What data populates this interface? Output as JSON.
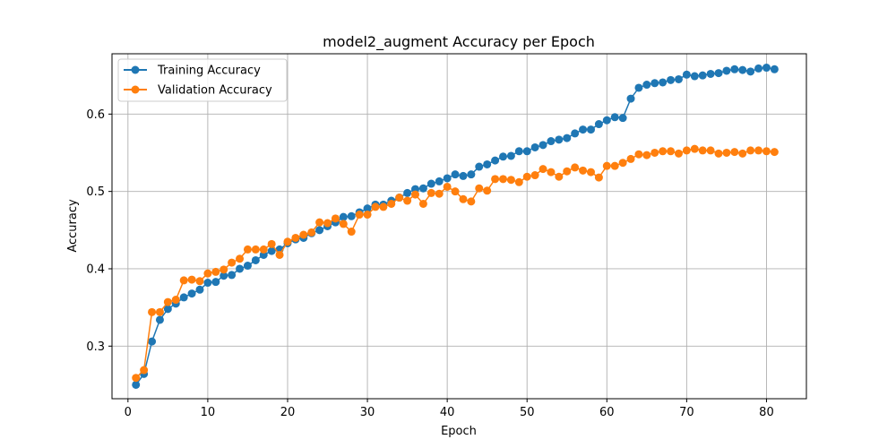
{
  "chart_data": {
    "type": "line",
    "title": "model2_augment Accuracy per Epoch",
    "xlabel": "Epoch",
    "ylabel": "Accuracy",
    "xlim": [
      -2,
      85
    ],
    "ylim": [
      0.232,
      0.678
    ],
    "xticks": [
      0,
      10,
      20,
      30,
      40,
      50,
      60,
      70,
      80
    ],
    "yticks": [
      0.3,
      0.4,
      0.5,
      0.6
    ],
    "grid": true,
    "legend_position": "top-left",
    "x": [
      1,
      2,
      3,
      4,
      5,
      6,
      7,
      8,
      9,
      10,
      11,
      12,
      13,
      14,
      15,
      16,
      17,
      18,
      19,
      20,
      21,
      22,
      23,
      24,
      25,
      26,
      27,
      28,
      29,
      30,
      31,
      32,
      33,
      34,
      35,
      36,
      37,
      38,
      39,
      40,
      41,
      42,
      43,
      44,
      45,
      46,
      47,
      48,
      49,
      50,
      51,
      52,
      53,
      54,
      55,
      56,
      57,
      58,
      59,
      60,
      61,
      62,
      63,
      64,
      65,
      66,
      67,
      68,
      69,
      70,
      71,
      72,
      73,
      74,
      75,
      76,
      77,
      78,
      79,
      80,
      81
    ],
    "series": [
      {
        "name": "Training Accuracy",
        "color": "#1f77b4",
        "values": [
          0.25,
          0.264,
          0.306,
          0.334,
          0.348,
          0.355,
          0.363,
          0.368,
          0.373,
          0.382,
          0.383,
          0.391,
          0.392,
          0.4,
          0.404,
          0.411,
          0.418,
          0.423,
          0.425,
          0.433,
          0.438,
          0.44,
          0.446,
          0.45,
          0.455,
          0.46,
          0.467,
          0.468,
          0.473,
          0.478,
          0.483,
          0.483,
          0.488,
          0.492,
          0.498,
          0.503,
          0.504,
          0.51,
          0.513,
          0.517,
          0.522,
          0.52,
          0.522,
          0.532,
          0.535,
          0.54,
          0.545,
          0.546,
          0.552,
          0.552,
          0.557,
          0.56,
          0.565,
          0.567,
          0.569,
          0.575,
          0.58,
          0.58,
          0.587,
          0.592,
          0.596,
          0.595,
          0.62,
          0.634,
          0.638,
          0.64,
          0.641,
          0.644,
          0.645,
          0.651,
          0.649,
          0.65,
          0.652,
          0.653,
          0.656,
          0.658,
          0.657,
          0.655,
          0.659,
          0.66,
          0.658
        ]
      },
      {
        "name": "Validation Accuracy",
        "color": "#ff7f0e",
        "values": [
          0.259,
          0.269,
          0.344,
          0.344,
          0.357,
          0.36,
          0.385,
          0.386,
          0.384,
          0.394,
          0.396,
          0.399,
          0.408,
          0.413,
          0.425,
          0.425,
          0.425,
          0.432,
          0.418,
          0.435,
          0.44,
          0.444,
          0.447,
          0.46,
          0.459,
          0.465,
          0.458,
          0.448,
          0.47,
          0.47,
          0.48,
          0.48,
          0.484,
          0.492,
          0.488,
          0.496,
          0.484,
          0.498,
          0.497,
          0.506,
          0.5,
          0.49,
          0.487,
          0.504,
          0.501,
          0.516,
          0.516,
          0.515,
          0.512,
          0.519,
          0.521,
          0.529,
          0.525,
          0.519,
          0.526,
          0.531,
          0.527,
          0.525,
          0.518,
          0.533,
          0.533,
          0.537,
          0.542,
          0.548,
          0.547,
          0.55,
          0.552,
          0.552,
          0.549,
          0.553,
          0.555,
          0.553,
          0.553,
          0.549,
          0.55,
          0.551,
          0.549,
          0.553,
          0.553,
          0.552,
          0.551
        ]
      }
    ]
  }
}
